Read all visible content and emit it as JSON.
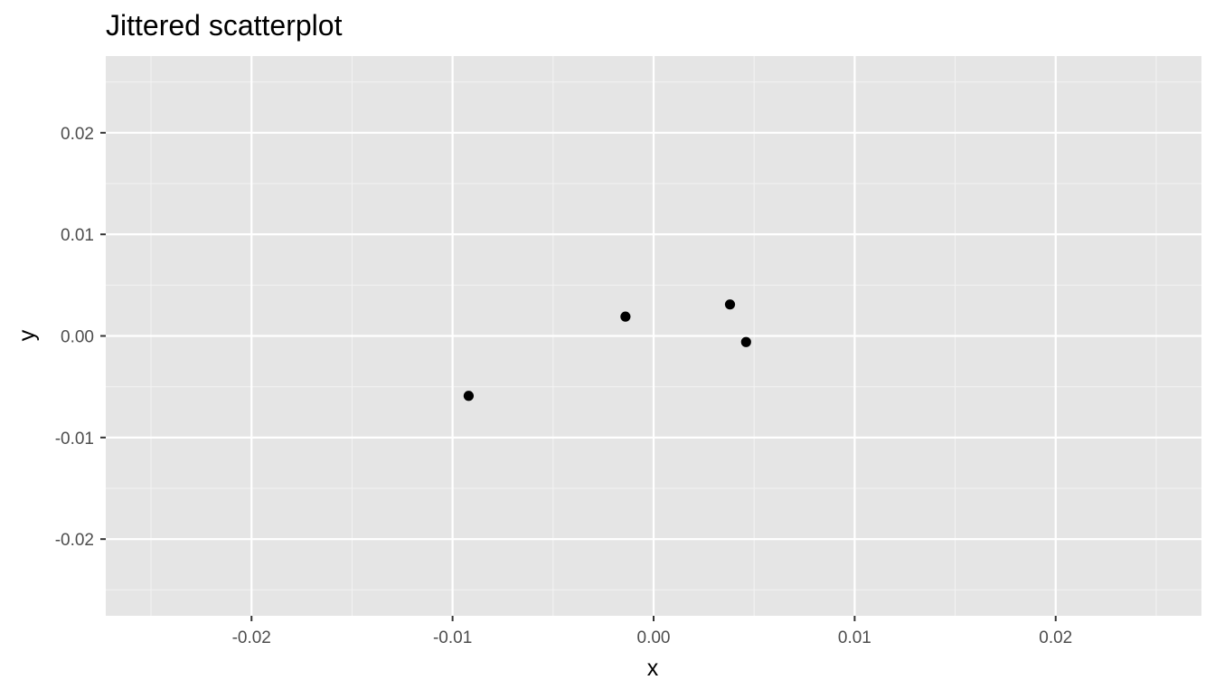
{
  "chart_data": {
    "type": "scatter",
    "title": "Jittered scatterplot",
    "xlabel": "x",
    "ylabel": "y",
    "xlim": [
      -0.02725,
      0.02725
    ],
    "ylim": [
      -0.02755,
      0.02755
    ],
    "x_ticks": [
      -0.02,
      -0.01,
      0.0,
      0.01,
      0.02
    ],
    "x_tick_labels": [
      "-0.02",
      "-0.01",
      "0.00",
      "0.01",
      "0.02"
    ],
    "y_ticks": [
      -0.02,
      -0.01,
      0.0,
      0.01,
      0.02
    ],
    "y_tick_labels": [
      "-0.02",
      "-0.01",
      "0.00",
      "0.01",
      "0.02"
    ],
    "x_minor": [
      -0.025,
      -0.015,
      -0.005,
      0.005,
      0.015,
      0.025
    ],
    "y_minor": [
      -0.025,
      -0.015,
      -0.005,
      0.005,
      0.015,
      0.025
    ],
    "grid": true,
    "points": [
      {
        "x": -0.0092,
        "y": -0.0059
      },
      {
        "x": -0.0014,
        "y": 0.0019
      },
      {
        "x": 0.0038,
        "y": 0.0031
      },
      {
        "x": 0.0046,
        "y": -0.0006
      }
    ],
    "colors": {
      "panel": "#e5e5e5",
      "grid_major": "#ffffff",
      "grid_minor": "#f2f2f2",
      "point": "#000000",
      "tick": "#333333"
    }
  }
}
